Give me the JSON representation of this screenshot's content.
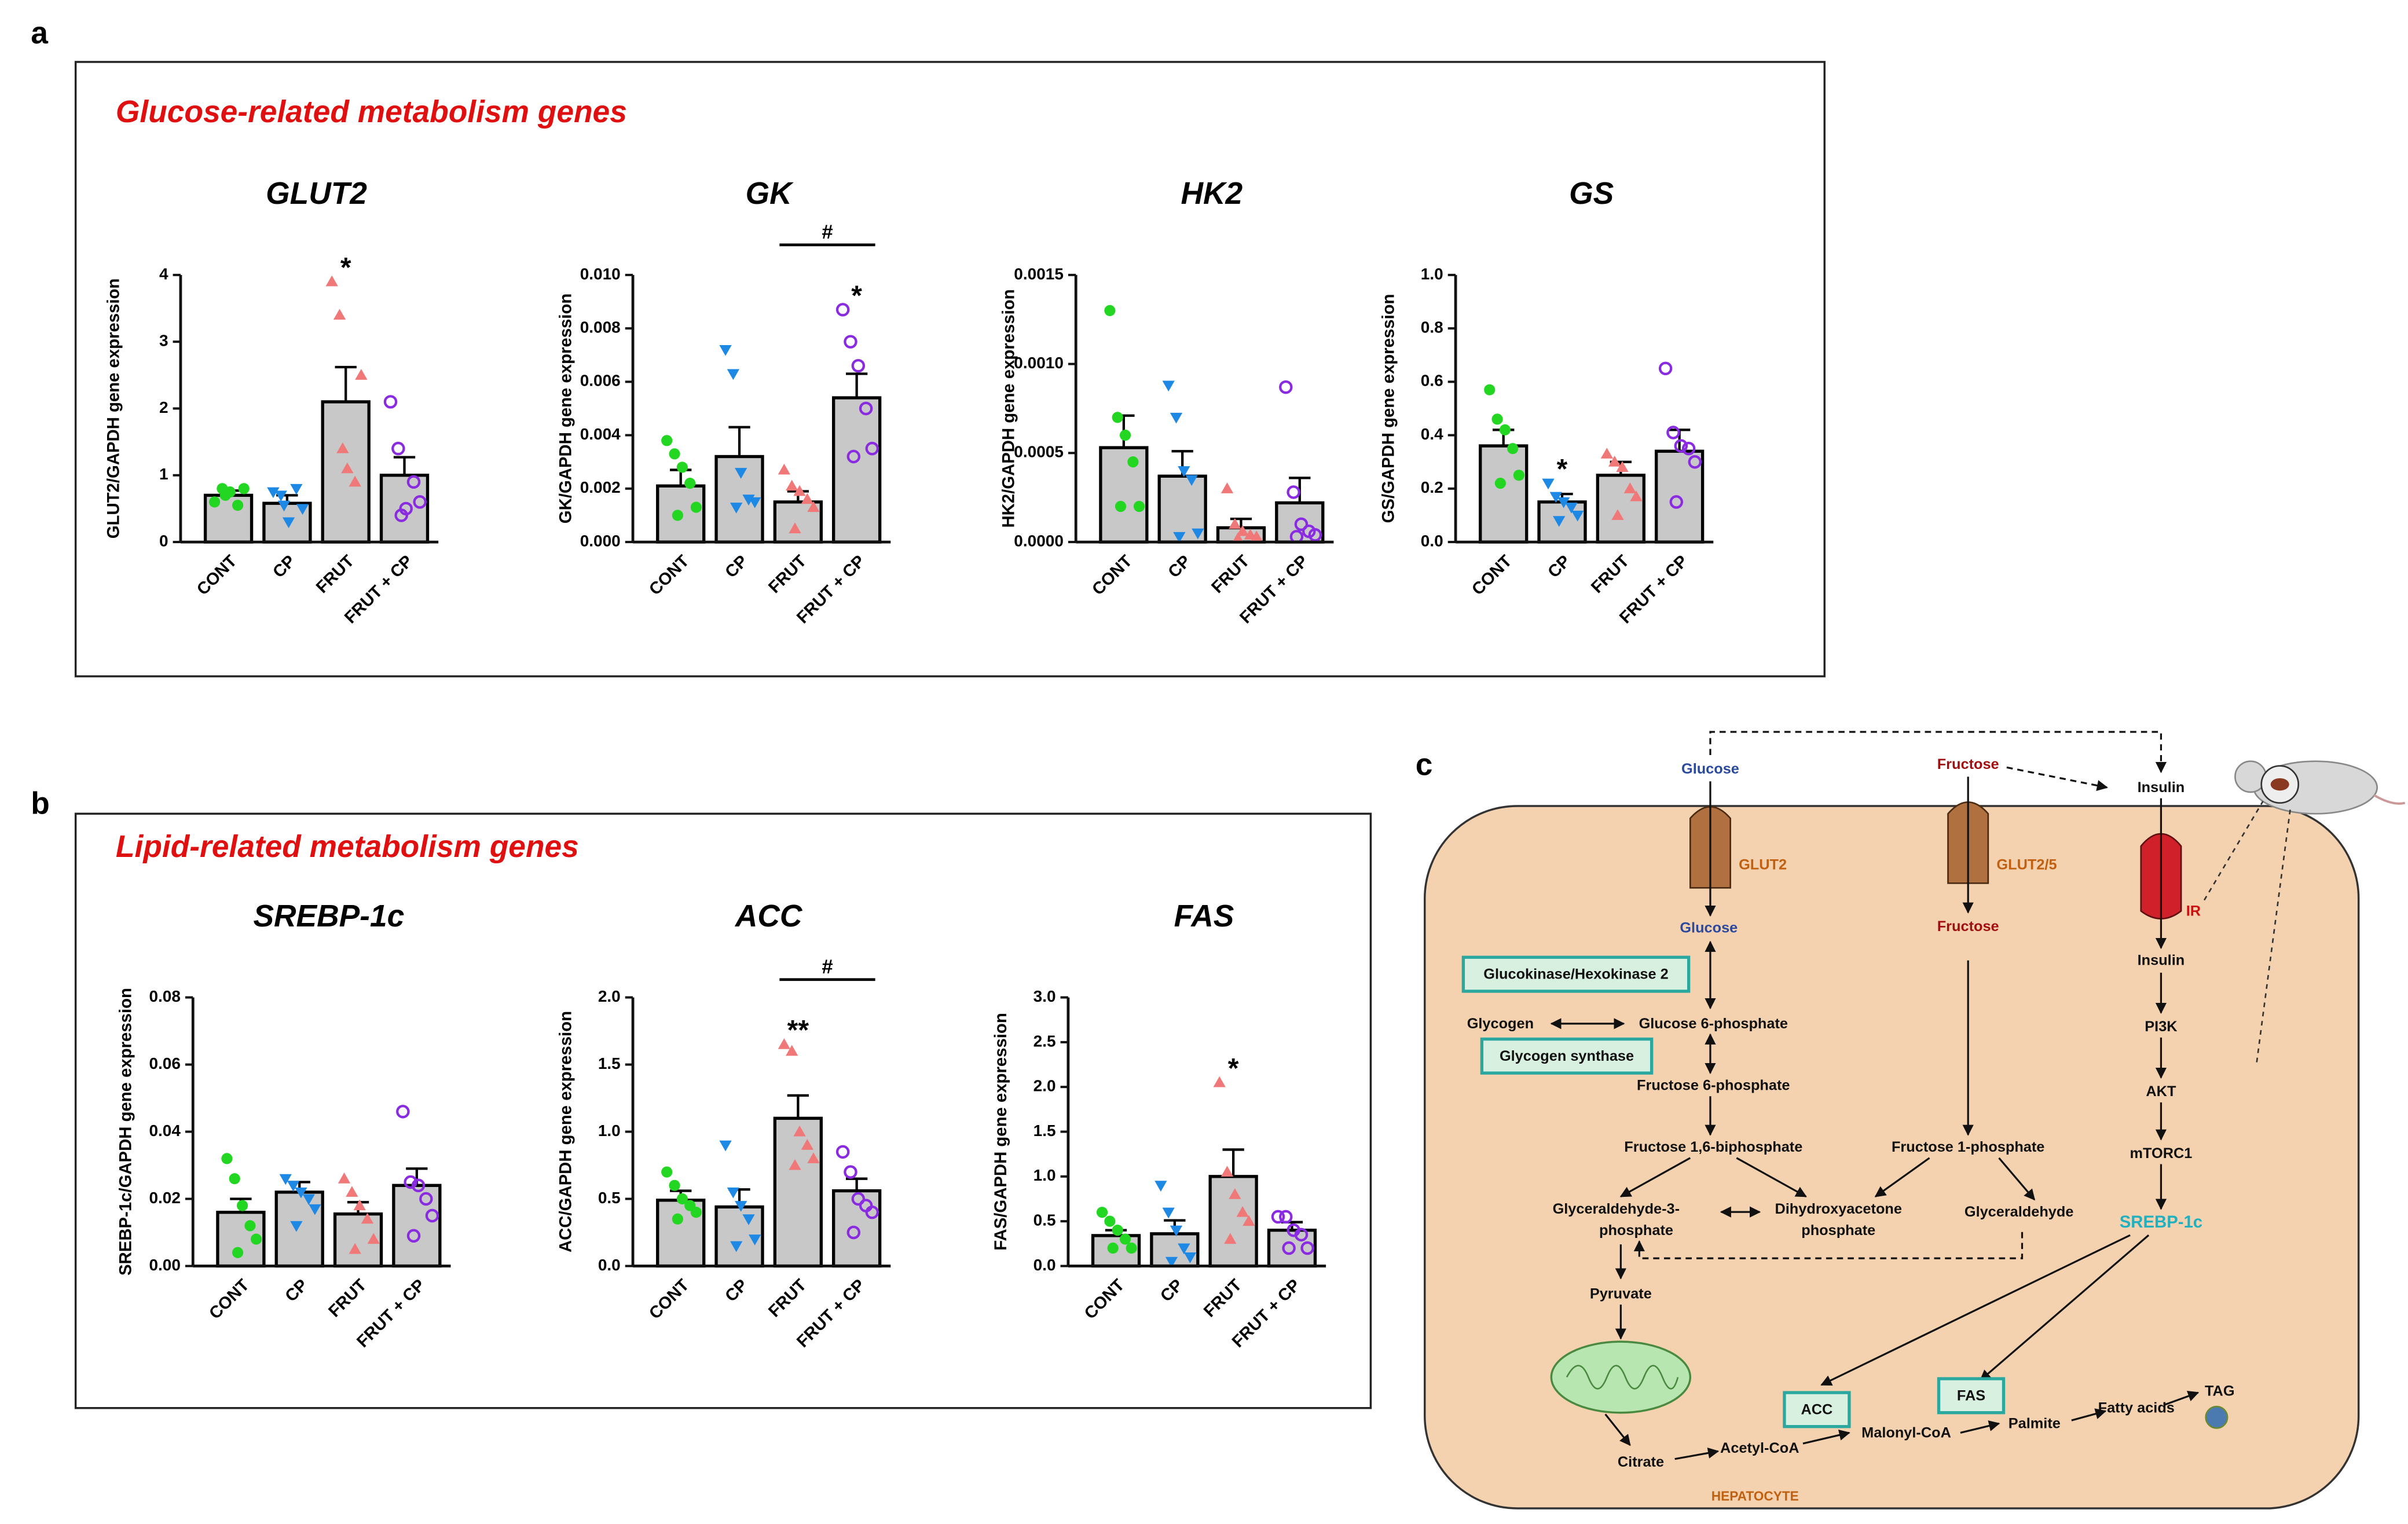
{
  "panels": [
    {
      "label": "a",
      "heading": "Glucose-related metabolism genes"
    },
    {
      "label": "b",
      "heading": "Lipid-related metabolism genes"
    },
    {
      "label": "c"
    }
  ],
  "chart_data": [
    {
      "type": "bar",
      "title": "GLUT2",
      "ylabel": "GLUT2/GAPDH gene expression",
      "categories": [
        "CONT",
        "CP",
        "FRUT",
        "FRUT + CP"
      ],
      "values": [
        0.7,
        0.58,
        2.1,
        1.0
      ],
      "errors": [
        0.07,
        0.12,
        0.52,
        0.27
      ],
      "points": [
        [
          0.6,
          0.8,
          0.75,
          0.55,
          0.8,
          0.7
        ],
        [
          0.75,
          0.7,
          0.3,
          0.8,
          0.5,
          0.55
        ],
        [
          3.9,
          3.4,
          1.1,
          0.9,
          2.5,
          1.4
        ],
        [
          2.1,
          1.4,
          0.5,
          0.9,
          0.6,
          0.4
        ]
      ],
      "colors": [
        "#22d622",
        "#1e88e5",
        "#f07878",
        "#8a2be2"
      ],
      "markers": [
        "circle",
        "triangle-down",
        "triangle-up",
        "open-circle"
      ],
      "bar_color": "#c8c8c8",
      "ylim": [
        0,
        4
      ],
      "yticks": [
        0,
        1,
        2,
        3,
        4
      ],
      "annotations": [
        {
          "text": "*",
          "category": 2
        }
      ]
    },
    {
      "type": "bar",
      "title": "GK",
      "ylabel": "GK/GAPDH gene expression",
      "categories": [
        "CONT",
        "CP",
        "FRUT",
        "FRUT + CP"
      ],
      "values": [
        0.0021,
        0.0032,
        0.0015,
        0.0054
      ],
      "errors": [
        0.0006,
        0.0011,
        0.0004,
        0.0009
      ],
      "points": [
        [
          0.0038,
          0.0033,
          0.0028,
          0.0022,
          0.0013,
          0.001
        ],
        [
          0.0072,
          0.0063,
          0.0026,
          0.0016,
          0.0015,
          0.0013
        ],
        [
          0.0027,
          0.0021,
          0.0019,
          0.0016,
          0.0013,
          0.0005
        ],
        [
          0.0087,
          0.0075,
          0.0066,
          0.005,
          0.0035,
          0.0032
        ]
      ],
      "colors": [
        "#22d622",
        "#1e88e5",
        "#f07878",
        "#8a2be2"
      ],
      "markers": [
        "circle",
        "triangle-down",
        "triangle-up",
        "open-circle"
      ],
      "bar_color": "#c8c8c8",
      "ylim": [
        0,
        0.01
      ],
      "yticks": [
        {
          "value": 0,
          "label": "0.000"
        },
        {
          "value": 0.002,
          "label": "0.002"
        },
        {
          "value": 0.004,
          "label": "0.004"
        },
        {
          "value": 0.006,
          "label": "0.006"
        },
        {
          "value": 0.008,
          "label": "0.008"
        },
        {
          "value": 0.01,
          "label": "0.010"
        }
      ],
      "annotations": [
        {
          "text": "*",
          "category": 3
        },
        {
          "text": "#",
          "from": 2,
          "to": 3
        }
      ]
    },
    {
      "type": "bar",
      "title": "HK2",
      "ylabel": "HK2/GAPDH gene expression",
      "categories": [
        "CONT",
        "CP",
        "FRUT",
        "FRUT + CP"
      ],
      "values": [
        0.00053,
        0.00037,
        8e-05,
        0.00022
      ],
      "errors": [
        0.00018,
        0.00014,
        5e-05,
        0.00014
      ],
      "points": [
        [
          0.0013,
          0.0007,
          0.0006,
          0.00045,
          0.0002,
          0.0002
        ],
        [
          0.00088,
          0.0007,
          0.0004,
          0.00035,
          5e-05,
          3e-05
        ],
        [
          0.0003,
          0.0001,
          6e-05,
          4e-05,
          3e-05,
          2e-05
        ],
        [
          0.00087,
          0.00028,
          0.0001,
          6e-05,
          4e-05,
          3e-05
        ]
      ],
      "colors": [
        "#22d622",
        "#1e88e5",
        "#f07878",
        "#8a2be2"
      ],
      "markers": [
        "circle",
        "triangle-down",
        "triangle-up",
        "open-circle"
      ],
      "bar_color": "#c8c8c8",
      "ylim": [
        0,
        0.0015
      ],
      "yticks": [
        {
          "value": 0,
          "label": "0.0000"
        },
        {
          "value": 0.0005,
          "label": "0.0005"
        },
        {
          "value": 0.001,
          "label": "0.0010"
        },
        {
          "value": 0.0015,
          "label": "0.0015"
        }
      ],
      "annotations": []
    },
    {
      "type": "bar",
      "title": "GS",
      "ylabel": "GS/GAPDH gene expression",
      "categories": [
        "CONT",
        "CP",
        "FRUT",
        "FRUT + CP"
      ],
      "values": [
        0.36,
        0.15,
        0.25,
        0.34
      ],
      "errors": [
        0.06,
        0.03,
        0.05,
        0.08
      ],
      "points": [
        [
          0.57,
          0.46,
          0.42,
          0.35,
          0.25,
          0.22
        ],
        [
          0.22,
          0.17,
          0.15,
          0.13,
          0.1,
          0.08
        ],
        [
          0.33,
          0.3,
          0.28,
          0.2,
          0.17,
          0.1
        ],
        [
          0.65,
          0.41,
          0.36,
          0.35,
          0.3,
          0.15
        ]
      ],
      "colors": [
        "#22d622",
        "#1e88e5",
        "#f07878",
        "#8a2be2"
      ],
      "markers": [
        "circle",
        "triangle-down",
        "triangle-up",
        "open-circle"
      ],
      "bar_color": "#c8c8c8",
      "ylim": [
        0,
        1
      ],
      "yticks": [
        {
          "value": 0,
          "label": "0.0"
        },
        {
          "value": 0.2,
          "label": "0.2"
        },
        {
          "value": 0.4,
          "label": "0.4"
        },
        {
          "value": 0.6,
          "label": "0.6"
        },
        {
          "value": 0.8,
          "label": "0.8"
        },
        {
          "value": 1,
          "label": "1.0"
        }
      ],
      "annotations": [
        {
          "text": "*",
          "category": 1
        }
      ]
    },
    {
      "type": "bar",
      "title": "SREBP-1c",
      "ylabel": "SREBP-1c/GAPDH gene expression",
      "categories": [
        "CONT",
        "CP",
        "FRUT",
        "FRUT + CP"
      ],
      "values": [
        0.016,
        0.022,
        0.0155,
        0.024
      ],
      "errors": [
        0.004,
        0.003,
        0.0035,
        0.005
      ],
      "points": [
        [
          0.032,
          0.026,
          0.018,
          0.012,
          0.008,
          0.004
        ],
        [
          0.026,
          0.024,
          0.022,
          0.02,
          0.017,
          0.012
        ],
        [
          0.026,
          0.022,
          0.018,
          0.014,
          0.008,
          0.005
        ],
        [
          0.046,
          0.025,
          0.024,
          0.02,
          0.015,
          0.009
        ]
      ],
      "colors": [
        "#22d622",
        "#1e88e5",
        "#f07878",
        "#8a2be2"
      ],
      "markers": [
        "circle",
        "triangle-down",
        "triangle-up",
        "open-circle"
      ],
      "bar_color": "#c8c8c8",
      "ylim": [
        0,
        0.08
      ],
      "yticks": [
        {
          "value": 0,
          "label": "0.00"
        },
        {
          "value": 0.02,
          "label": "0.02"
        },
        {
          "value": 0.04,
          "label": "0.04"
        },
        {
          "value": 0.06,
          "label": "0.06"
        },
        {
          "value": 0.08,
          "label": "0.08"
        }
      ],
      "annotations": []
    },
    {
      "type": "bar",
      "title": "ACC",
      "ylabel": "ACC/GAPDH gene expression",
      "categories": [
        "CONT",
        "CP",
        "FRUT",
        "FRUT + CP"
      ],
      "values": [
        0.49,
        0.44,
        1.1,
        0.56
      ],
      "errors": [
        0.07,
        0.13,
        0.17,
        0.09
      ],
      "points": [
        [
          0.7,
          0.6,
          0.5,
          0.45,
          0.4,
          0.35
        ],
        [
          0.9,
          0.55,
          0.45,
          0.35,
          0.2,
          0.15
        ],
        [
          1.65,
          1.6,
          1.0,
          0.9,
          0.8,
          0.75
        ],
        [
          0.85,
          0.7,
          0.5,
          0.45,
          0.4,
          0.25
        ]
      ],
      "colors": [
        "#22d622",
        "#1e88e5",
        "#f07878",
        "#8a2be2"
      ],
      "markers": [
        "circle",
        "triangle-down",
        "triangle-up",
        "open-circle"
      ],
      "bar_color": "#c8c8c8",
      "ylim": [
        0,
        2
      ],
      "yticks": [
        {
          "value": 0,
          "label": "0.0"
        },
        {
          "value": 0.5,
          "label": "0.5"
        },
        {
          "value": 1,
          "label": "1.0"
        },
        {
          "value": 1.5,
          "label": "1.5"
        },
        {
          "value": 2,
          "label": "2.0"
        }
      ],
      "annotations": [
        {
          "text": "**",
          "category": 2
        },
        {
          "text": "#",
          "from": 2,
          "to": 3
        }
      ]
    },
    {
      "type": "bar",
      "title": "FAS",
      "ylabel": "FAS/GAPDH gene expression",
      "categories": [
        "CONT",
        "CP",
        "FRUT",
        "FRUT + CP"
      ],
      "values": [
        0.34,
        0.36,
        1.0,
        0.4
      ],
      "errors": [
        0.06,
        0.15,
        0.3,
        0.09
      ],
      "points": [
        [
          0.6,
          0.5,
          0.4,
          0.3,
          0.2,
          0.2
        ],
        [
          0.9,
          0.6,
          0.4,
          0.2,
          0.1,
          0.05
        ],
        [
          2.05,
          1.05,
          0.8,
          0.6,
          0.5,
          0.3
        ],
        [
          0.55,
          0.55,
          0.4,
          0.35,
          0.2,
          0.2
        ]
      ],
      "colors": [
        "#22d622",
        "#1e88e5",
        "#f07878",
        "#8a2be2"
      ],
      "markers": [
        "circle",
        "triangle-down",
        "triangle-up",
        "open-circle"
      ],
      "bar_color": "#c8c8c8",
      "ylim": [
        0,
        3
      ],
      "yticks": [
        {
          "value": 0,
          "label": "0.0"
        },
        {
          "value": 0.5,
          "label": "0.5"
        },
        {
          "value": 1,
          "label": "1.0"
        },
        {
          "value": 1.5,
          "label": "1.5"
        },
        {
          "value": 2,
          "label": "2.0"
        },
        {
          "value": 2.5,
          "label": "2.5"
        },
        {
          "value": 3,
          "label": "3.0"
        }
      ],
      "annotations": [
        {
          "text": "*",
          "category": 2
        }
      ]
    }
  ],
  "diagram": {
    "nodes": [
      {
        "label": "Glucose"
      },
      {
        "label": "Fructose"
      },
      {
        "label": "Insulin"
      },
      {
        "label": "GLUT2"
      },
      {
        "label": "GLUT2/5"
      },
      {
        "label": "IR"
      },
      {
        "label": "Glucose"
      },
      {
        "label": "Fructose"
      },
      {
        "label": "Glucokinase/Hexokinase 2"
      },
      {
        "label": "Glycogen"
      },
      {
        "label": "Glucose 6-phosphate"
      },
      {
        "label": "Glycogen synthase"
      },
      {
        "label": "Fructose 6-phosphate"
      },
      {
        "label": "Fructose 1,6-biphosphate"
      },
      {
        "label": "Fructose 1-phosphate"
      },
      {
        "label": "Glyceraldehyde-3-"
      },
      {
        "label": "phosphate"
      },
      {
        "label": "Dihydroxyacetone"
      },
      {
        "label": "phosphate"
      },
      {
        "label": "Glyceraldehyde"
      },
      {
        "label": "Pyruvate"
      },
      {
        "label": "Citrate"
      },
      {
        "label": "Acetyl-CoA"
      },
      {
        "label": "ACC"
      },
      {
        "label": "Malonyl-CoA"
      },
      {
        "label": "FAS"
      },
      {
        "label": "Palmite"
      },
      {
        "label": "Fatty acids"
      },
      {
        "label": "TAG"
      },
      {
        "label": "HEPATOCYTE"
      },
      {
        "label": "Insulin"
      },
      {
        "label": "PI3K"
      },
      {
        "label": "AKT"
      },
      {
        "label": "mTORC1"
      },
      {
        "label": "SREBP-1c"
      }
    ]
  }
}
